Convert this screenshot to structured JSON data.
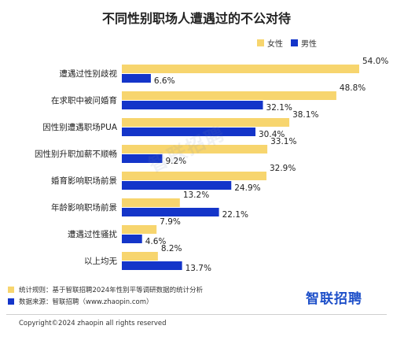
{
  "chart_data": {
    "type": "bar",
    "orientation": "horizontal",
    "title": "不同性别职场人遭遇过的不公对待",
    "categories": [
      "遭遇过性别歧视",
      "在求职中被问婚育",
      "因性别遭遇职场PUA",
      "因性别升职加薪不顺畅",
      "婚育影响职场前景",
      "年龄影响职场前景",
      "遭遇过性骚扰",
      "以上均无"
    ],
    "series": [
      {
        "name": "女性",
        "values": [
          54.0,
          48.8,
          38.1,
          33.1,
          32.9,
          13.2,
          7.9,
          8.2
        ],
        "labels": [
          "54.0%",
          "48.8%",
          "38.1%",
          "33.1%",
          "32.9%",
          "13.2%",
          "7.9%",
          "8.2%"
        ]
      },
      {
        "name": "男性",
        "values": [
          6.6,
          32.1,
          30.4,
          9.2,
          24.9,
          22.1,
          4.6,
          13.7
        ],
        "labels": [
          "6.6%",
          "32.1%",
          "30.4%",
          "9.2%",
          "24.9%",
          "22.1%",
          "4.6%",
          "13.7%"
        ]
      }
    ],
    "xlim": [
      0,
      54
    ],
    "grid": false,
    "legend_position": "top-right"
  },
  "colors": {
    "female": "#f7d56e",
    "male": "#1435c9"
  },
  "watermark": "智联招聘",
  "notes": [
    {
      "text": "统计规则：基于智联招聘2024年性别平等调研数据的统计分析",
      "color": "#f7d56e"
    },
    {
      "text": "数据来源：智联招聘（www.zhaopin.com）",
      "color": "#1435c9"
    }
  ],
  "brand": "智联招聘",
  "copyright": "Copyright©2024 zhaopin all rights reserved"
}
